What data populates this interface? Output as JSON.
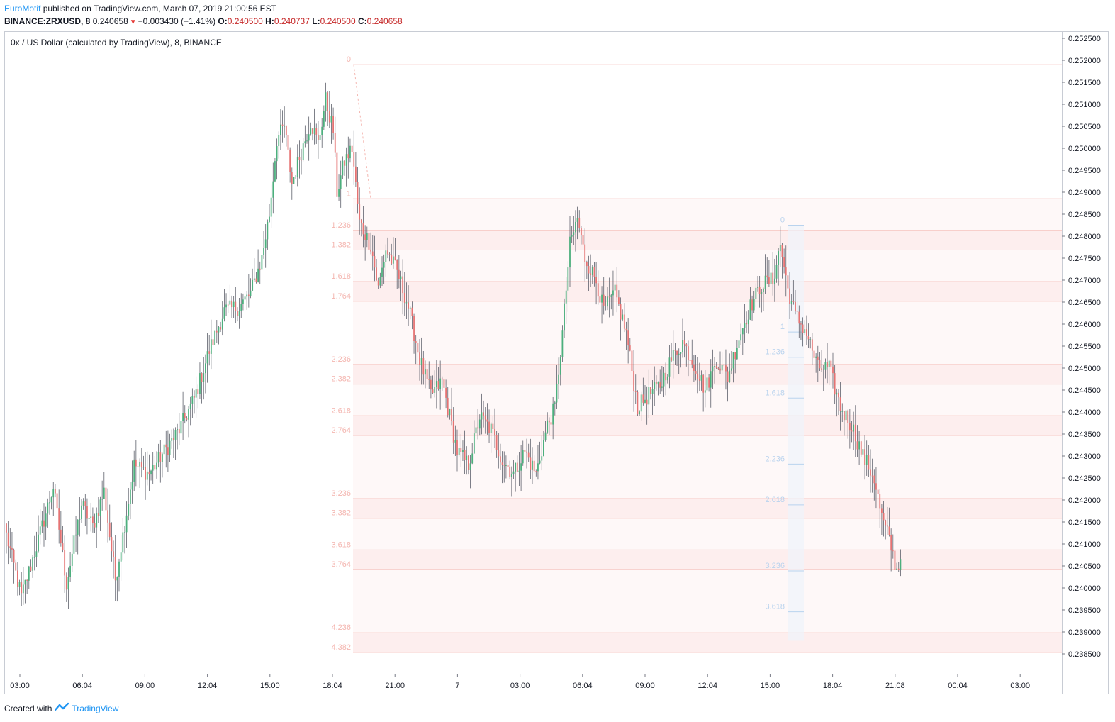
{
  "header": {
    "author": "EuroMotif",
    "published": "published on TradingView.com, March 07, 2019 21:00:56 EST",
    "symbol": "BINANCE:ZRXUSD, 8",
    "last": "0.240658",
    "change": "−0.003430 (−1.41%)",
    "o_label": "O:",
    "o": "0.240500",
    "h_label": "H:",
    "h": "0.240737",
    "l_label": "L:",
    "l": "0.240500",
    "c_label": "C:",
    "c": "0.240658"
  },
  "legend": "0x / US Dollar (calculated by TradingView), 8, BINANCE",
  "footer": {
    "created_with": "Created with",
    "brand": "TradingView"
  },
  "colors": {
    "up": "#4caf7d",
    "down": "#e57373",
    "fib": "#f4b6b0",
    "fib_fill": "#fdecec",
    "fib2": "#b9d3ee",
    "grid": "#e6e9ef"
  },
  "chart_data": {
    "type": "candlestick",
    "y_tick_labels": [
      "0.252500",
      "0.252000",
      "0.251500",
      "0.251000",
      "0.250500",
      "0.250000",
      "0.249500",
      "0.249000",
      "0.248500",
      "0.248000",
      "0.247500",
      "0.247000",
      "0.246500",
      "0.246000",
      "0.245500",
      "0.245000",
      "0.244500",
      "0.244000",
      "0.243500",
      "0.243000",
      "0.242500",
      "0.242000",
      "0.241500",
      "0.241000",
      "0.240500",
      "0.240000",
      "0.239500",
      "0.239000",
      "0.238500"
    ],
    "ylim": [
      0.2382,
      0.2528
    ],
    "x_tick_labels": [
      "03:00",
      "06:04",
      "09:00",
      "12:04",
      "15:00",
      "18:04",
      "21:00",
      "7",
      "03:00",
      "06:04",
      "09:00",
      "12:04",
      "15:00",
      "18:04",
      "21:08",
      "00:04",
      "03:00"
    ],
    "fib_extension_1": {
      "price_0": 0.2519,
      "price_1": 0.24885,
      "levels": [
        "0",
        "1",
        "1.236",
        "1.382",
        "1.618",
        "1.764",
        "2.236",
        "2.382",
        "2.618",
        "2.764",
        "3.236",
        "3.382",
        "3.618",
        "3.764",
        "4.236",
        "4.382"
      ]
    },
    "fib_extension_2": {
      "price_0": 0.24825,
      "price_1": 0.24582,
      "levels": [
        "0",
        "1",
        "1.236",
        "1.618",
        "2.236",
        "2.618",
        "3.236",
        "3.618"
      ]
    },
    "anchors": [
      [
        0,
        0.2412
      ],
      [
        8,
        0.2398
      ],
      [
        15,
        0.2408
      ],
      [
        25,
        0.2423
      ],
      [
        32,
        0.2401
      ],
      [
        40,
        0.2419
      ],
      [
        46,
        0.2414
      ],
      [
        52,
        0.2422
      ],
      [
        58,
        0.2402
      ],
      [
        62,
        0.2412
      ],
      [
        68,
        0.2428
      ],
      [
        76,
        0.2426
      ],
      [
        84,
        0.2431
      ],
      [
        92,
        0.2436
      ],
      [
        100,
        0.2443
      ],
      [
        108,
        0.2454
      ],
      [
        116,
        0.2463
      ],
      [
        124,
        0.2464
      ],
      [
        130,
        0.2467
      ],
      [
        136,
        0.2475
      ],
      [
        140,
        0.2485
      ],
      [
        144,
        0.2502
      ],
      [
        148,
        0.2505
      ],
      [
        152,
        0.2492
      ],
      [
        156,
        0.2498
      ],
      [
        162,
        0.2506
      ],
      [
        166,
        0.2501
      ],
      [
        170,
        0.2511
      ],
      [
        174,
        0.2504
      ],
      [
        176,
        0.249
      ],
      [
        180,
        0.2497
      ],
      [
        184,
        0.25
      ],
      [
        188,
        0.2483
      ],
      [
        194,
        0.2478
      ],
      [
        198,
        0.2468
      ],
      [
        202,
        0.2477
      ],
      [
        208,
        0.2472
      ],
      [
        214,
        0.2464
      ],
      [
        220,
        0.2452
      ],
      [
        226,
        0.2444
      ],
      [
        232,
        0.2447
      ],
      [
        240,
        0.2431
      ],
      [
        246,
        0.2428
      ],
      [
        252,
        0.2439
      ],
      [
        258,
        0.2436
      ],
      [
        264,
        0.2429
      ],
      [
        270,
        0.2426
      ],
      [
        276,
        0.2431
      ],
      [
        282,
        0.2426
      ],
      [
        288,
        0.2437
      ],
      [
        292,
        0.2441
      ],
      [
        296,
        0.2458
      ],
      [
        300,
        0.2478
      ],
      [
        304,
        0.2484
      ],
      [
        308,
        0.2475
      ],
      [
        314,
        0.247
      ],
      [
        318,
        0.2463
      ],
      [
        324,
        0.2467
      ],
      [
        330,
        0.2458
      ],
      [
        336,
        0.2441
      ],
      [
        342,
        0.2444
      ],
      [
        348,
        0.2446
      ],
      [
        354,
        0.2452
      ],
      [
        360,
        0.2456
      ],
      [
        366,
        0.2451
      ],
      [
        372,
        0.2445
      ],
      [
        378,
        0.2452
      ],
      [
        384,
        0.2448
      ],
      [
        390,
        0.2457
      ],
      [
        396,
        0.2464
      ],
      [
        402,
        0.2469
      ],
      [
        408,
        0.247
      ],
      [
        412,
        0.2478
      ],
      [
        416,
        0.2468
      ],
      [
        420,
        0.2462
      ],
      [
        426,
        0.2458
      ],
      [
        432,
        0.245
      ],
      [
        438,
        0.245
      ],
      [
        444,
        0.2441
      ],
      [
        450,
        0.2437
      ],
      [
        456,
        0.243
      ],
      [
        462,
        0.2425
      ],
      [
        466,
        0.2416
      ],
      [
        470,
        0.2411
      ],
      [
        474,
        0.2404
      ],
      [
        476,
        0.2406
      ]
    ]
  }
}
